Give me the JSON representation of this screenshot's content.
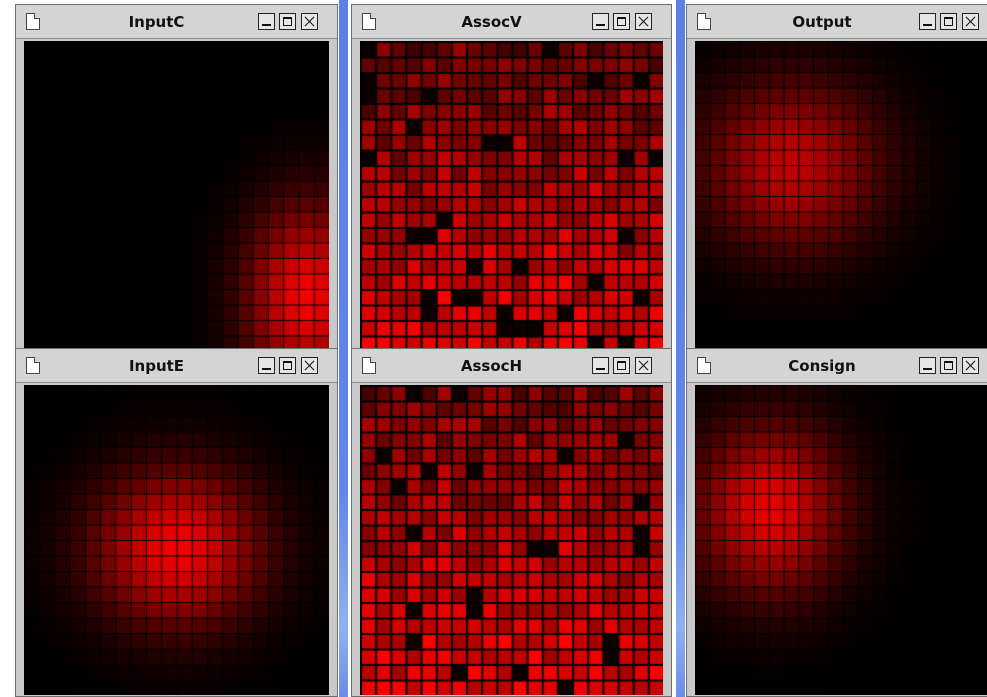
{
  "windows": {
    "input_c": {
      "title": "InputC",
      "map": "activity",
      "color": "#ff0000"
    },
    "assoc_v": {
      "title": "AssocV",
      "map": "weights",
      "color": "#ff0000"
    },
    "output": {
      "title": "Output",
      "map": "activity",
      "color": "#ff0000"
    },
    "input_e": {
      "title": "InputE",
      "map": "activity",
      "color": "#ff0000"
    },
    "assoc_h": {
      "title": "AssocH",
      "map": "weights",
      "color": "#ff0000"
    },
    "consign": {
      "title": "Consign",
      "map": "activity",
      "color": "#ff0000"
    }
  },
  "icons": {
    "window_icon": "document-icon",
    "minimize": "minimize-icon",
    "maximize": "maximize-icon",
    "close": "close-icon"
  },
  "colors": {
    "desktop_strip": "#5f86e8",
    "titlebar": "#d4d4d4",
    "cell_on": "#ff0000",
    "cell_off": "#000000"
  }
}
